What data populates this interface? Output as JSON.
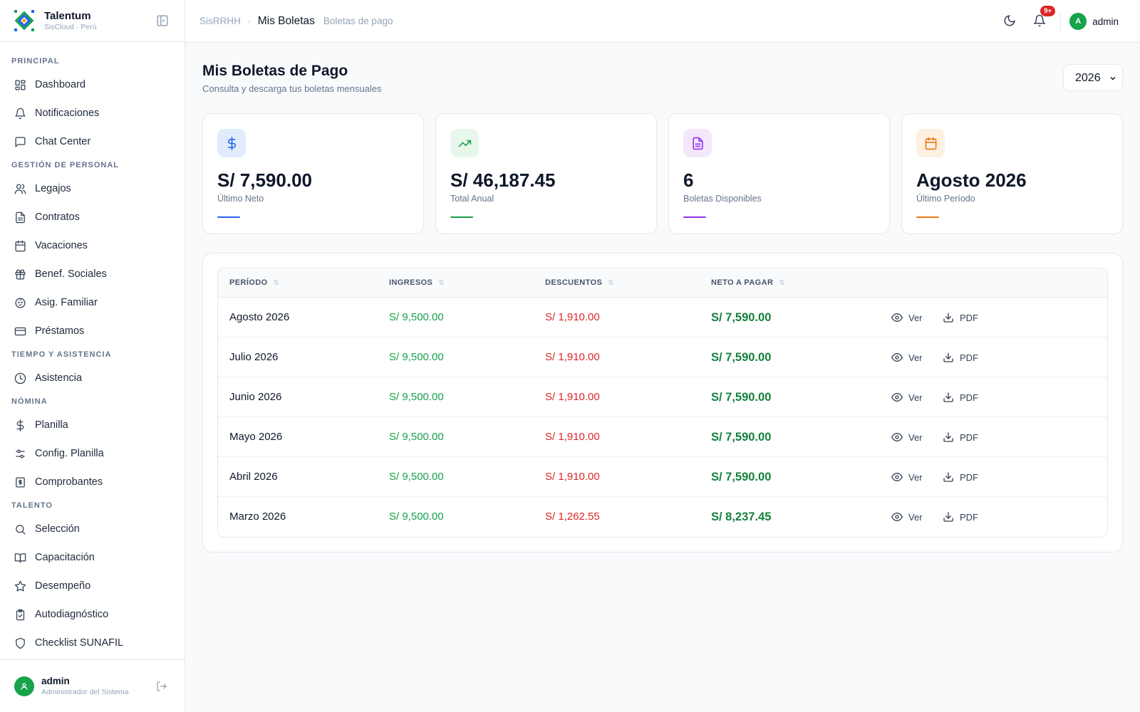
{
  "brand": {
    "name": "Talentum",
    "sub": "SisCloud · Perú"
  },
  "sidebar": {
    "sections": [
      {
        "title": "PRINCIPAL",
        "items": [
          {
            "label": "Dashboard",
            "icon": "dashboard-icon"
          },
          {
            "label": "Notificaciones",
            "icon": "bell-icon"
          },
          {
            "label": "Chat Center",
            "icon": "chat-icon"
          }
        ]
      },
      {
        "title": "GESTIÓN DE PERSONAL",
        "items": [
          {
            "label": "Legajos",
            "icon": "users-icon"
          },
          {
            "label": "Contratos",
            "icon": "file-icon"
          },
          {
            "label": "Vacaciones",
            "icon": "calendar-icon"
          },
          {
            "label": "Benef. Sociales",
            "icon": "gift-icon"
          },
          {
            "label": "Asig. Familiar",
            "icon": "baby-icon"
          },
          {
            "label": "Préstamos",
            "icon": "card-icon"
          }
        ]
      },
      {
        "title": "TIEMPO Y ASISTENCIA",
        "items": [
          {
            "label": "Asistencia",
            "icon": "clock-icon"
          }
        ]
      },
      {
        "title": "NÓMINA",
        "items": [
          {
            "label": "Planilla",
            "icon": "dollar-icon"
          },
          {
            "label": "Config. Planilla",
            "icon": "sliders-icon"
          },
          {
            "label": "Comprobantes",
            "icon": "receipt-icon"
          }
        ]
      },
      {
        "title": "TALENTO",
        "items": [
          {
            "label": "Selección",
            "icon": "search-icon"
          },
          {
            "label": "Capacitación",
            "icon": "book-icon"
          },
          {
            "label": "Desempeño",
            "icon": "star-icon"
          },
          {
            "label": "Autodiagnóstico",
            "icon": "clipboard-icon"
          },
          {
            "label": "Checklist SUNAFIL",
            "icon": "shield-icon"
          }
        ]
      }
    ],
    "footer": {
      "name": "admin",
      "role": "Administrador del Sistema"
    }
  },
  "header": {
    "crumb_root": "SisRRHH",
    "crumb_current": "Mis Boletas",
    "crumb_desc": "Boletas de pago",
    "notif_badge": "9+",
    "avatar_initial": "A",
    "user": "admin"
  },
  "page": {
    "title": "Mis Boletas de Pago",
    "subtitle": "Consulta y descarga tus boletas mensuales",
    "year_selected": "2026"
  },
  "stats": [
    {
      "value": "S/ 7,590.00",
      "label": "Último Neto",
      "icon": "dollar-icon",
      "color": "#2563eb",
      "bg": "#e0ebfb"
    },
    {
      "value": "S/ 46,187.45",
      "label": "Total Anual",
      "icon": "trend-up-icon",
      "color": "#16a34a",
      "bg": "#e8f7ec"
    },
    {
      "value": "6",
      "label": "Boletas Disponibles",
      "icon": "document-icon",
      "color": "#9333ea",
      "bg": "#f3e8fb"
    },
    {
      "value": "Agosto 2026",
      "label": "Último Período",
      "icon": "calendar-icon",
      "color": "#ea7a10",
      "bg": "#fdf0e1"
    }
  ],
  "table": {
    "headers": {
      "periodo": "PERÍODO",
      "ingresos": "INGRESOS",
      "descuentos": "DESCUENTOS",
      "neto": "NETO A PAGAR"
    },
    "sort_glyph": "⇅",
    "actions": {
      "view": "Ver",
      "pdf": "PDF"
    },
    "rows": [
      {
        "periodo": "Agosto 2026",
        "ingresos": "S/ 9,500.00",
        "descuentos": "S/ 1,910.00",
        "neto": "S/ 7,590.00"
      },
      {
        "periodo": "Julio 2026",
        "ingresos": "S/ 9,500.00",
        "descuentos": "S/ 1,910.00",
        "neto": "S/ 7,590.00"
      },
      {
        "periodo": "Junio 2026",
        "ingresos": "S/ 9,500.00",
        "descuentos": "S/ 1,910.00",
        "neto": "S/ 7,590.00"
      },
      {
        "periodo": "Mayo 2026",
        "ingresos": "S/ 9,500.00",
        "descuentos": "S/ 1,910.00",
        "neto": "S/ 7,590.00"
      },
      {
        "periodo": "Abril 2026",
        "ingresos": "S/ 9,500.00",
        "descuentos": "S/ 1,910.00",
        "neto": "S/ 7,590.00"
      },
      {
        "periodo": "Marzo 2026",
        "ingresos": "S/ 9,500.00",
        "descuentos": "S/ 1,262.55",
        "neto": "S/ 8,237.45"
      }
    ]
  }
}
